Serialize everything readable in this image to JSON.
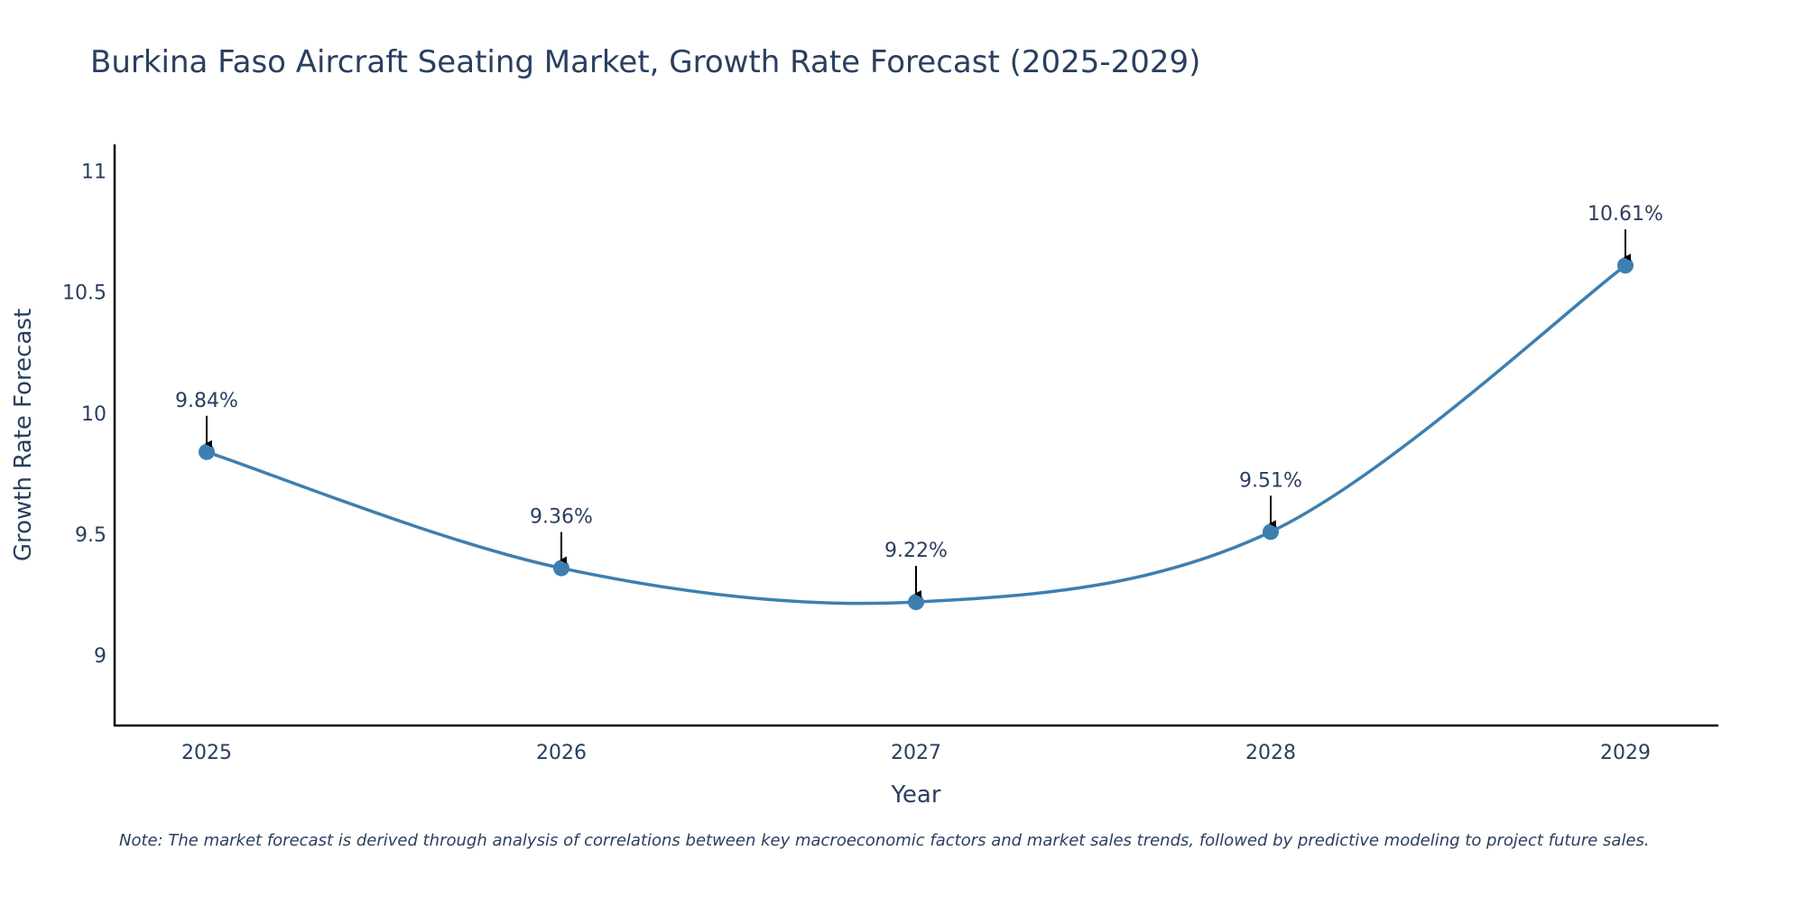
{
  "chart_data": {
    "type": "line",
    "title": "Burkina Faso Aircraft Seating Market, Growth Rate Forecast (2025-2029)",
    "xlabel": "Year",
    "ylabel": "Growth Rate Forecast",
    "categories": [
      "2025",
      "2026",
      "2027",
      "2028",
      "2029"
    ],
    "series": [
      {
        "name": "Growth Rate Forecast",
        "values": [
          9.84,
          9.36,
          9.22,
          9.51,
          10.61
        ],
        "labels": [
          "9.84%",
          "9.36%",
          "9.22%",
          "9.51%",
          "10.61%"
        ],
        "color": "#3d7fb0"
      }
    ],
    "yticks": [
      9,
      9.5,
      10,
      10.5,
      11
    ],
    "ytick_labels": [
      "9",
      "9.5",
      "10",
      "10.5",
      "11"
    ],
    "ylim": [
      8.71,
      11.11
    ],
    "grid": false,
    "line_shape": "spline",
    "annotation_arrows": true
  },
  "note": "Note: The market forecast is derived through analysis of correlations between key macroeconomic factors and market sales trends, followed by predictive modeling to project future sales.",
  "colors": {
    "text": "#2a3f5f",
    "axis": "#000000",
    "line": "#3d7fb0",
    "arrow": "#000000"
  }
}
